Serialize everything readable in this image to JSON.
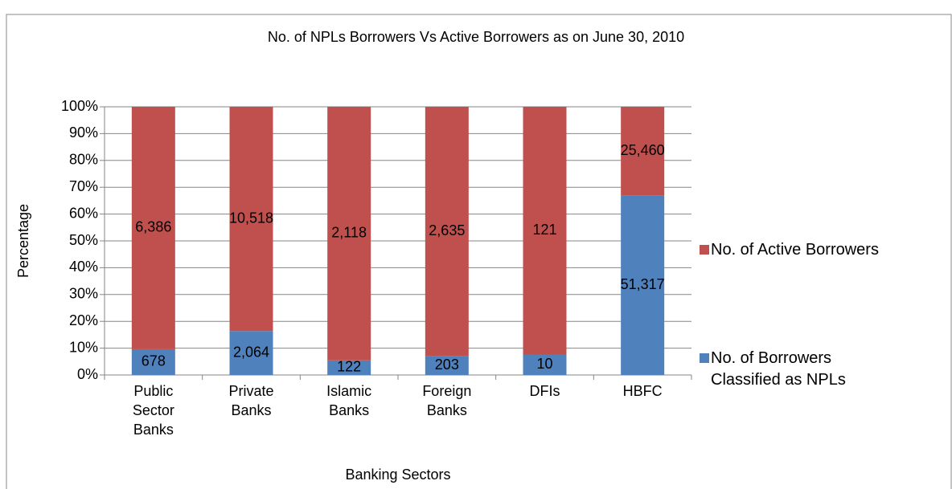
{
  "chart_data": {
    "type": "bar",
    "stacking": "percent",
    "title": "No. of NPLs Borrowers Vs Active Borrowers as on June 30, 2010",
    "x_label": "Banking Sectors",
    "y_label": "Percentage",
    "categories": [
      "Public Sector Banks",
      "Private Banks",
      "Islamic Banks",
      "Foreign Banks",
      "DFIs",
      "HBFC"
    ],
    "series": [
      {
        "name": "No. of Borrowers Classified as NPLs",
        "color": "#4f81bd",
        "values": [
          678,
          2064,
          122,
          203,
          10,
          51317
        ],
        "value_labels": [
          "678",
          "2,064",
          "122",
          "203",
          "10",
          "51,317"
        ]
      },
      {
        "name": "No. of Active Borrowers",
        "color": "#c0504d",
        "values": [
          6386,
          10518,
          2118,
          2635,
          121,
          25460
        ],
        "value_labels": [
          "6,386",
          "10,518",
          "2,118",
          "2,635",
          "121",
          "25,460"
        ]
      }
    ],
    "ylim": [
      0,
      100
    ],
    "yticks": [
      {
        "value": 0,
        "label": "0%"
      },
      {
        "value": 10,
        "label": "10%"
      },
      {
        "value": 20,
        "label": "20%"
      },
      {
        "value": 30,
        "label": "30%"
      },
      {
        "value": 40,
        "label": "40%"
      },
      {
        "value": 50,
        "label": "50%"
      },
      {
        "value": 60,
        "label": "60%"
      },
      {
        "value": 70,
        "label": "70%"
      },
      {
        "value": 80,
        "label": "80%"
      },
      {
        "value": 90,
        "label": "90%"
      },
      {
        "value": 100,
        "label": "100%"
      }
    ],
    "grid": true,
    "legend": "right"
  }
}
